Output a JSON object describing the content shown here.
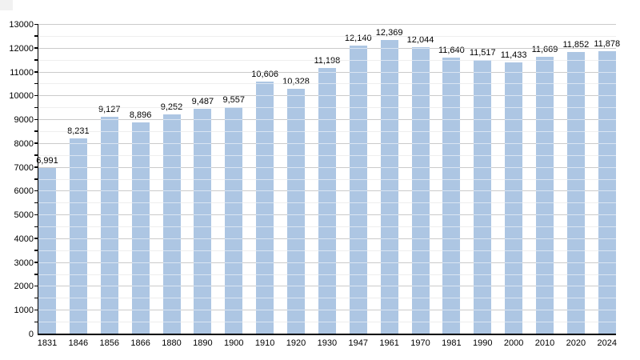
{
  "chart_data": {
    "type": "bar",
    "title": "",
    "xlabel": "",
    "ylabel": "",
    "categories": [
      "1831",
      "1846",
      "1856",
      "1866",
      "1880",
      "1890",
      "1900",
      "1910",
      "1920",
      "1930",
      "1947",
      "1961",
      "1970",
      "1981",
      "1990",
      "2000",
      "2010",
      "2020",
      "2024"
    ],
    "values": [
      6991,
      8231,
      9127,
      8896,
      9252,
      9487,
      9557,
      10606,
      10328,
      11198,
      12140,
      12369,
      12044,
      11640,
      11517,
      11433,
      11669,
      11852,
      11878
    ],
    "value_labels": [
      "6,991",
      "8,231",
      "9,127",
      "8,896",
      "9,252",
      "9,487",
      "9,557",
      "10,606",
      "10,328",
      "11,198",
      "12,140",
      "12,369",
      "12,044",
      "11,640",
      "11,517",
      "11,433",
      "11,669",
      "11,852",
      "11,878"
    ],
    "ylim": [
      0,
      13000
    ],
    "y_major_step": 1000,
    "y_minor_step": 500,
    "y_tick_labels": [
      "0",
      "1000",
      "2000",
      "3000",
      "4000",
      "5000",
      "6000",
      "7000",
      "8000",
      "9000",
      "10000",
      "11000",
      "12000",
      "13000"
    ],
    "grid": "on",
    "legend": "none",
    "colors": {
      "bar": "#adc6e3",
      "axis": "#000000",
      "major_gridline": "#c9c9c9",
      "minor_gridline": "#ececec",
      "major_gridline_base": "#8c8c8c",
      "minor_gridline_base": "#dadada",
      "gridline_overlay": "rgba(255,255,255,0.55)",
      "label_text": "#000000"
    }
  }
}
